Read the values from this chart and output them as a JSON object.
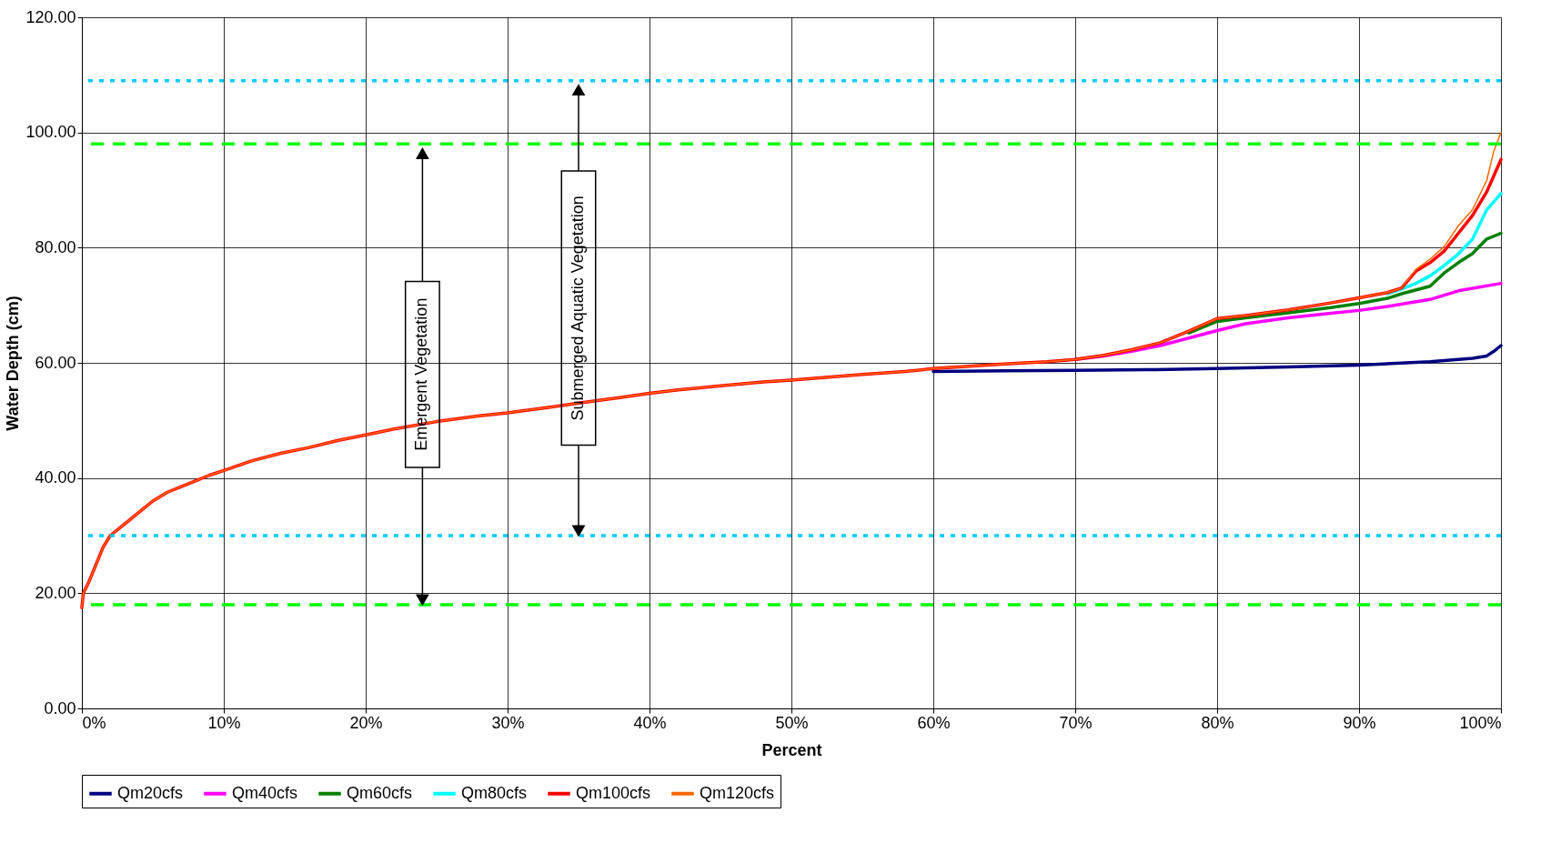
{
  "chart_data": {
    "type": "line",
    "xlabel": "Percent",
    "ylabel": "Water Depth (cm)",
    "xlim": [
      0,
      100
    ],
    "ylim": [
      0,
      120
    ],
    "xticks": [
      {
        "value": 0,
        "label": "0%"
      },
      {
        "value": 10,
        "label": "10%"
      },
      {
        "value": 20,
        "label": "20%"
      },
      {
        "value": 30,
        "label": "30%"
      },
      {
        "value": 40,
        "label": "40%"
      },
      {
        "value": 50,
        "label": "50%"
      },
      {
        "value": 60,
        "label": "60%"
      },
      {
        "value": 70,
        "label": "70%"
      },
      {
        "value": 80,
        "label": "80%"
      },
      {
        "value": 90,
        "label": "90%"
      },
      {
        "value": 100,
        "label": "100%"
      }
    ],
    "yticks": [
      {
        "value": 0,
        "label": "0.00"
      },
      {
        "value": 20,
        "label": "20.00"
      },
      {
        "value": 40,
        "label": "40.00"
      },
      {
        "value": 60,
        "label": "60.00"
      },
      {
        "value": 80,
        "label": "80.00"
      },
      {
        "value": 100,
        "label": "100.00"
      },
      {
        "value": 120,
        "label": "120.00"
      }
    ],
    "grid": true,
    "legend": "bottom",
    "marker": "none",
    "line_style": "solid",
    "series": [
      {
        "name": "Qm20cfs",
        "color": "#000080",
        "x": [
          60,
          65,
          70,
          75,
          80,
          85,
          90,
          95,
          98,
          99,
          99.5,
          100
        ],
        "values": [
          58.5,
          58.6,
          58.7,
          58.8,
          59,
          59.3,
          59.6,
          60.2,
          60.8,
          61.2,
          62,
          63
        ]
      },
      {
        "name": "Qm40cfs",
        "color": "#ff00ff",
        "x": [
          70,
          72,
          74,
          76,
          78,
          80,
          82,
          85,
          88,
          90,
          92,
          95,
          97,
          100
        ],
        "values": [
          60.6,
          61.2,
          62,
          63,
          64.3,
          65.6,
          66.8,
          67.8,
          68.6,
          69.1,
          69.8,
          71,
          72.5,
          73.8
        ]
      },
      {
        "name": "Qm60cfs",
        "color": "#008000",
        "x": [
          78,
          80,
          82,
          85,
          88,
          90,
          92,
          93,
          95,
          96,
          97,
          98,
          99,
          100
        ],
        "values": [
          65.2,
          67.2,
          67.8,
          68.7,
          69.6,
          70.3,
          71.2,
          72,
          73.3,
          75.6,
          77.4,
          79,
          81.5,
          82.5
        ]
      },
      {
        "name": "Qm80cfs",
        "color": "#00ffff",
        "x": [
          92,
          93,
          94,
          95,
          96,
          97,
          98,
          99,
          100
        ],
        "values": [
          72,
          72.8,
          73.8,
          75.1,
          76.9,
          78.9,
          81.5,
          86.6,
          89.4
        ]
      },
      {
        "name": "Qm100cfs",
        "color": "#ff0000",
        "x": [
          0,
          0.1,
          0.5,
          1,
          1.5,
          2,
          3,
          4,
          5,
          6,
          7,
          8,
          9,
          10,
          12,
          14,
          16,
          18,
          20,
          22,
          25,
          28,
          30,
          33,
          35,
          38,
          40,
          42,
          45,
          48,
          50,
          53,
          55,
          58,
          60,
          63,
          65,
          68,
          70,
          72,
          74,
          76,
          78,
          80,
          82,
          85,
          88,
          90,
          92,
          93,
          94,
          95,
          96,
          97,
          98,
          99,
          100
        ],
        "values": [
          17.5,
          20,
          22,
          25,
          28,
          30,
          32,
          34,
          36,
          37.5,
          38.5,
          39.5,
          40.5,
          41.3,
          43,
          44.3,
          45.3,
          46.5,
          47.5,
          48.5,
          49.8,
          50.8,
          51.3,
          52.3,
          53,
          54,
          54.7,
          55.3,
          56,
          56.7,
          57,
          57.6,
          58,
          58.5,
          59,
          59.5,
          59.8,
          60.2,
          60.6,
          61.3,
          62.3,
          63.5,
          65.5,
          67.7,
          68.2,
          69.2,
          70.4,
          71.3,
          72.2,
          73,
          75.9,
          77.4,
          79.4,
          82.5,
          85.6,
          89.7,
          95.3
        ]
      },
      {
        "name": "Qm120cfs",
        "color": "#ff6600",
        "x": [
          0,
          0.1,
          0.5,
          1,
          1.5,
          2,
          3,
          4,
          5,
          6,
          7,
          8,
          9,
          10,
          12,
          14,
          16,
          18,
          20,
          22,
          25,
          28,
          30,
          33,
          35,
          38,
          40,
          42,
          45,
          48,
          50,
          53,
          55,
          58,
          60,
          63,
          65,
          68,
          70,
          72,
          74,
          76,
          78,
          80,
          82,
          85,
          88,
          90,
          92,
          93,
          94,
          95,
          96,
          97,
          98,
          99,
          99.5,
          100
        ],
        "values": [
          17.5,
          20,
          22,
          25,
          28,
          30,
          32,
          34,
          36,
          37.5,
          38.5,
          39.5,
          40.5,
          41.3,
          43,
          44.3,
          45.3,
          46.5,
          47.5,
          48.5,
          49.8,
          50.8,
          51.3,
          52.3,
          53,
          54,
          54.7,
          55.3,
          56,
          56.7,
          57,
          57.6,
          58,
          58.5,
          59,
          59.5,
          59.8,
          60.2,
          60.6,
          61.3,
          62.3,
          63.5,
          65.5,
          67.7,
          68.2,
          69.2,
          70.4,
          71.3,
          72.2,
          73,
          76.2,
          78,
          80.2,
          83.8,
          86.6,
          91.7,
          96.8,
          100
        ]
      }
    ],
    "ref_lines": [
      {
        "axis": "y",
        "value": 18,
        "color": "#00ff00",
        "line_style": "dashed"
      },
      {
        "axis": "y",
        "value": 98,
        "color": "#00ff00",
        "line_style": "dashed"
      },
      {
        "axis": "y",
        "value": 30,
        "color": "#00ccff",
        "line_style": "dotted"
      },
      {
        "axis": "y",
        "value": 109,
        "color": "#00ccff",
        "line_style": "dotted"
      }
    ],
    "annotations": [
      {
        "text": "Emergent Vegetation",
        "x": 24,
        "y": 18
      },
      "Submerged Aquatic Vegetation"
    ]
  }
}
